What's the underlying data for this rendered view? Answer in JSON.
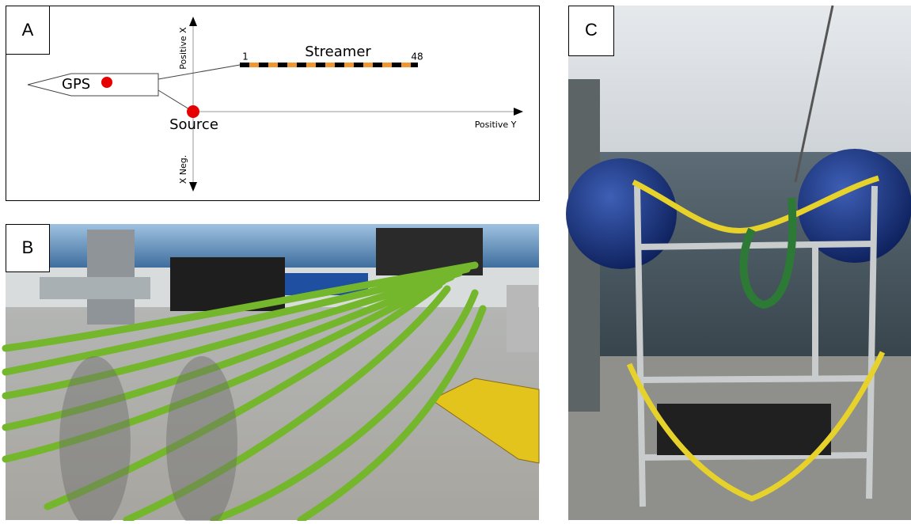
{
  "panels": [
    {
      "label": "A"
    },
    {
      "label": "B"
    },
    {
      "label": "C"
    }
  ],
  "diagram": {
    "gps": "GPS",
    "source": "Source",
    "streamer": "Streamer",
    "channel_first": 1,
    "channel_last": 48,
    "positive_x": "Positive X",
    "negative_x": "X Neg.",
    "positive_y": "Positive Y"
  }
}
